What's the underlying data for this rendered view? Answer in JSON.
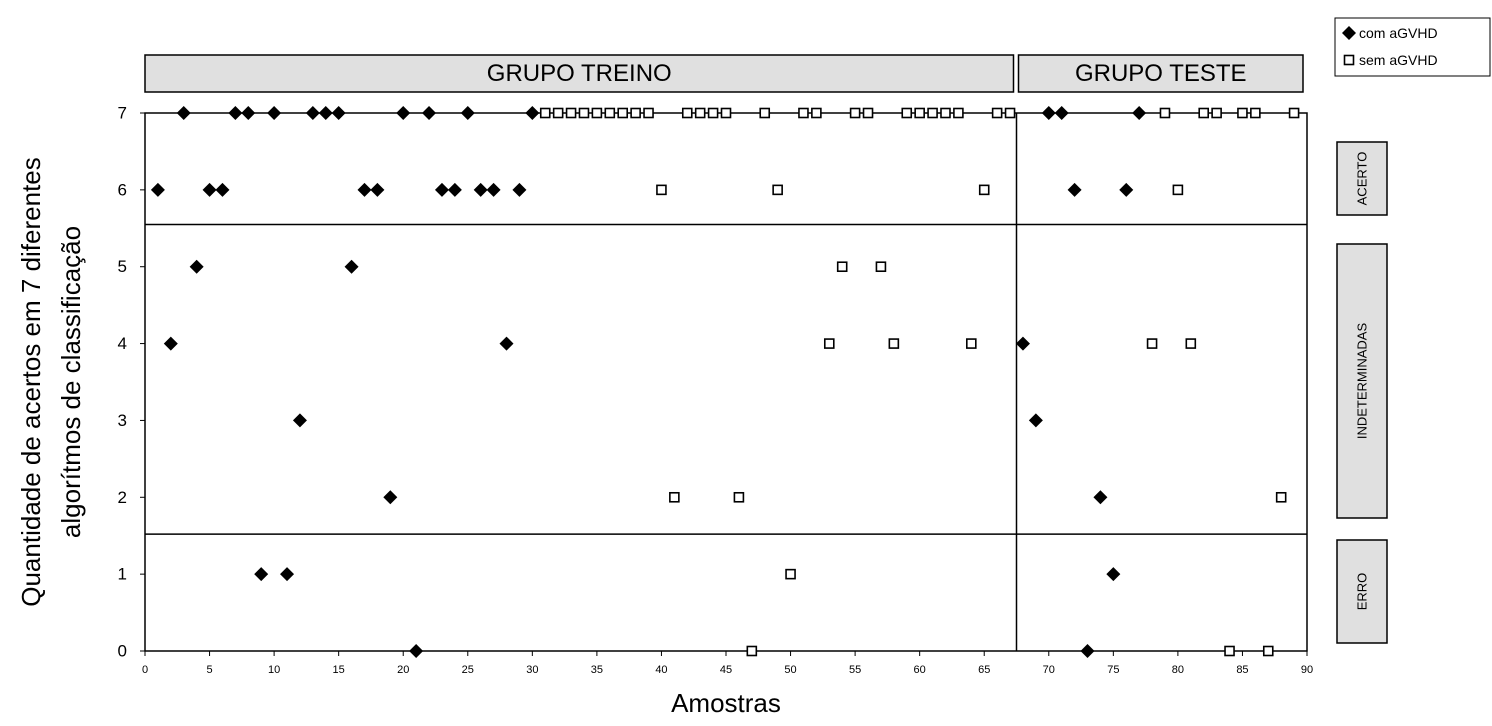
{
  "chart_data": {
    "type": "scatter",
    "xlabel": "Amostras",
    "ylabel_lines": [
      "Quantidade de acertos em 7 diferentes",
      "algorítmos de classificação"
    ],
    "xlim": [
      0,
      90
    ],
    "ylim": [
      0,
      7
    ],
    "xticks": [
      "0",
      "5",
      "10",
      "15",
      "20",
      "25",
      "30",
      "35",
      "40",
      "45",
      "50",
      "55",
      "60",
      "65",
      "70",
      "75",
      "80",
      "85",
      "90"
    ],
    "yticks": [
      "0",
      "1",
      "2",
      "3",
      "4",
      "5",
      "6",
      "7"
    ],
    "grid": false,
    "group_divider_x": 67.5,
    "region_dividers_y": [
      5.55,
      1.52
    ],
    "groups": [
      {
        "label": "GRUPO TREINO",
        "x_range": [
          0,
          67.5
        ]
      },
      {
        "label": "GRUPO TESTE",
        "x_range": [
          67.5,
          90
        ]
      }
    ],
    "regions": [
      {
        "label": "ACERTO",
        "y_range": [
          5.55,
          7
        ]
      },
      {
        "label": "INDETERMINADAS",
        "y_range": [
          1.52,
          5.55
        ]
      },
      {
        "label": "ERRO",
        "y_range": [
          0,
          1.52
        ]
      }
    ],
    "legend_position": "top-right",
    "series": [
      {
        "name": "com aGVHD",
        "marker": "filled-diamond",
        "color": "#000000",
        "points": [
          [
            1,
            6
          ],
          [
            2,
            4
          ],
          [
            3,
            7
          ],
          [
            4,
            5
          ],
          [
            5,
            6
          ],
          [
            6,
            6
          ],
          [
            7,
            7
          ],
          [
            8,
            7
          ],
          [
            9,
            1
          ],
          [
            10,
            7
          ],
          [
            11,
            1
          ],
          [
            12,
            3
          ],
          [
            13,
            7
          ],
          [
            14,
            7
          ],
          [
            15,
            7
          ],
          [
            16,
            5
          ],
          [
            17,
            6
          ],
          [
            18,
            6
          ],
          [
            19,
            2
          ],
          [
            20,
            7
          ],
          [
            21,
            0
          ],
          [
            22,
            7
          ],
          [
            23,
            6
          ],
          [
            24,
            6
          ],
          [
            25,
            7
          ],
          [
            26,
            6
          ],
          [
            27,
            6
          ],
          [
            28,
            4
          ],
          [
            29,
            6
          ],
          [
            30,
            7
          ],
          [
            68,
            4
          ],
          [
            69,
            3
          ],
          [
            70,
            7
          ],
          [
            71,
            7
          ],
          [
            72,
            6
          ],
          [
            73,
            0
          ],
          [
            74,
            2
          ],
          [
            75,
            1
          ],
          [
            76,
            6
          ],
          [
            77,
            7
          ]
        ]
      },
      {
        "name": "sem aGVHD",
        "marker": "open-square",
        "color": "#000000",
        "points": [
          [
            31,
            7
          ],
          [
            32,
            7
          ],
          [
            33,
            7
          ],
          [
            34,
            7
          ],
          [
            35,
            7
          ],
          [
            36,
            7
          ],
          [
            37,
            7
          ],
          [
            38,
            7
          ],
          [
            39,
            7
          ],
          [
            40,
            6
          ],
          [
            41,
            2
          ],
          [
            42,
            7
          ],
          [
            43,
            7
          ],
          [
            44,
            7
          ],
          [
            45,
            7
          ],
          [
            46,
            2
          ],
          [
            47,
            0
          ],
          [
            48,
            7
          ],
          [
            49,
            6
          ],
          [
            50,
            1
          ],
          [
            51,
            7
          ],
          [
            52,
            7
          ],
          [
            53,
            4
          ],
          [
            54,
            5
          ],
          [
            55,
            7
          ],
          [
            56,
            7
          ],
          [
            57,
            5
          ],
          [
            58,
            4
          ],
          [
            59,
            7
          ],
          [
            60,
            7
          ],
          [
            61,
            7
          ],
          [
            62,
            7
          ],
          [
            63,
            7
          ],
          [
            64,
            4
          ],
          [
            65,
            6
          ],
          [
            66,
            7
          ],
          [
            67,
            7
          ],
          [
            78,
            4
          ],
          [
            79,
            7
          ],
          [
            80,
            6
          ],
          [
            81,
            4
          ],
          [
            82,
            7
          ],
          [
            83,
            7
          ],
          [
            84,
            0
          ],
          [
            85,
            7
          ],
          [
            86,
            7
          ],
          [
            87,
            0
          ],
          [
            88,
            2
          ],
          [
            89,
            7
          ]
        ]
      }
    ]
  }
}
